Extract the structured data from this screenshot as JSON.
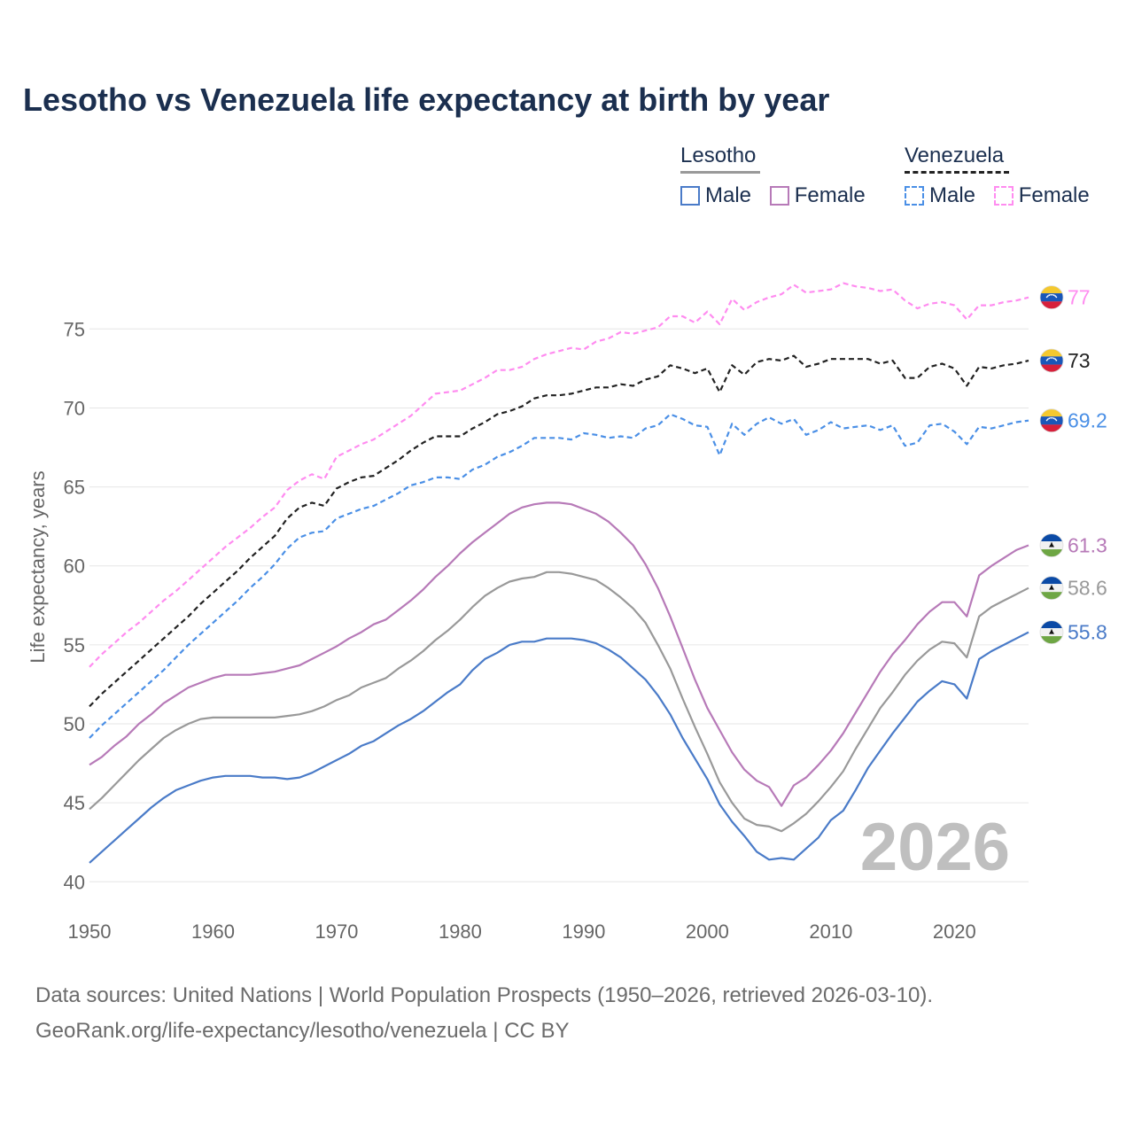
{
  "title": "Lesotho vs Venezuela life expectancy at birth by year",
  "legend": {
    "lesotho": {
      "name": "Lesotho",
      "male": "Male",
      "female": "Female"
    },
    "venezuela": {
      "name": "Venezuela",
      "male": "Male",
      "female": "Female"
    }
  },
  "footer": {
    "line1": "Data sources: United Nations | World Population Prospects (1950–2026, retrieved 2026-03-10).",
    "line2": "GeoRank.org/life-expectancy/lesotho/venezuela | CC BY"
  },
  "colors": {
    "lesotho_male": "#4a7bc8",
    "lesotho_female": "#b77ab8",
    "lesotho_total": "#999999",
    "venezuela_male": "#4a8fe6",
    "venezuela_female": "#ff8cf0",
    "venezuela_total": "#222222",
    "grid": "#e6e6e6",
    "axis_text": "#666666",
    "watermark": "#bfbfbf"
  },
  "chart_data": {
    "type": "line",
    "ylabel": "Life expectancy, years",
    "xlim": [
      1950,
      2026
    ],
    "ylim": [
      38.5,
      79
    ],
    "x_ticks": [
      1950,
      1960,
      1970,
      1980,
      1990,
      2000,
      2010,
      2020
    ],
    "y_ticks": [
      40,
      45,
      50,
      55,
      60,
      65,
      70,
      75
    ],
    "watermark_year": "2026",
    "x": [
      1950,
      1951,
      1952,
      1953,
      1954,
      1955,
      1956,
      1957,
      1958,
      1959,
      1960,
      1961,
      1962,
      1963,
      1964,
      1965,
      1966,
      1967,
      1968,
      1969,
      1970,
      1971,
      1972,
      1973,
      1974,
      1975,
      1976,
      1977,
      1978,
      1979,
      1980,
      1981,
      1982,
      1983,
      1984,
      1985,
      1986,
      1987,
      1988,
      1989,
      1990,
      1991,
      1992,
      1993,
      1994,
      1995,
      1996,
      1997,
      1998,
      1999,
      2000,
      2001,
      2002,
      2003,
      2004,
      2005,
      2006,
      2007,
      2008,
      2009,
      2010,
      2011,
      2012,
      2013,
      2014,
      2015,
      2016,
      2017,
      2018,
      2019,
      2020,
      2021,
      2022,
      2023,
      2024,
      2025,
      2026
    ],
    "series": [
      {
        "key": "venezuela_female",
        "name": "Venezuela Female",
        "dashed": true,
        "end_label": "77",
        "values": [
          53.6,
          54.4,
          55.1,
          55.8,
          56.4,
          57.1,
          57.8,
          58.4,
          59.1,
          59.8,
          60.5,
          61.2,
          61.8,
          62.4,
          63.1,
          63.7,
          64.8,
          65.4,
          65.8,
          65.5,
          66.9,
          67.3,
          67.7,
          68.0,
          68.5,
          69.0,
          69.5,
          70.2,
          70.9,
          71.0,
          71.1,
          71.5,
          71.9,
          72.4,
          72.4,
          72.6,
          73.1,
          73.4,
          73.6,
          73.8,
          73.7,
          74.2,
          74.4,
          74.8,
          74.7,
          74.9,
          75.1,
          75.8,
          75.8,
          75.4,
          76.1,
          75.3,
          76.9,
          76.2,
          76.7,
          77.0,
          77.2,
          77.8,
          77.3,
          77.4,
          77.5,
          77.9,
          77.7,
          77.6,
          77.4,
          77.5,
          76.8,
          76.3,
          76.6,
          76.7,
          76.5,
          75.6,
          76.5,
          76.5,
          76.7,
          76.8,
          77.0
        ]
      },
      {
        "key": "venezuela_total",
        "name": "Venezuela",
        "dashed": true,
        "end_label": "73",
        "values": [
          51.1,
          51.9,
          52.6,
          53.3,
          54.0,
          54.7,
          55.4,
          56.1,
          56.8,
          57.6,
          58.3,
          59.0,
          59.7,
          60.5,
          61.2,
          61.9,
          63.0,
          63.7,
          64.0,
          63.8,
          64.9,
          65.3,
          65.6,
          65.7,
          66.2,
          66.7,
          67.3,
          67.8,
          68.2,
          68.2,
          68.2,
          68.7,
          69.1,
          69.6,
          69.8,
          70.1,
          70.6,
          70.8,
          70.8,
          70.9,
          71.1,
          71.3,
          71.3,
          71.5,
          71.4,
          71.8,
          72.0,
          72.7,
          72.5,
          72.2,
          72.5,
          71.0,
          72.7,
          72.1,
          72.9,
          73.1,
          73.0,
          73.3,
          72.6,
          72.8,
          73.1,
          73.1,
          73.1,
          73.1,
          72.8,
          73.0,
          71.9,
          71.9,
          72.6,
          72.8,
          72.5,
          71.4,
          72.6,
          72.5,
          72.7,
          72.8,
          73.0
        ]
      },
      {
        "key": "venezuela_male",
        "name": "Venezuela Male",
        "dashed": true,
        "end_label": "69.2",
        "values": [
          49.1,
          49.9,
          50.6,
          51.3,
          52.0,
          52.7,
          53.4,
          54.2,
          55.0,
          55.7,
          56.4,
          57.1,
          57.8,
          58.6,
          59.3,
          60.1,
          61.1,
          61.8,
          62.1,
          62.2,
          63.0,
          63.3,
          63.6,
          63.8,
          64.2,
          64.6,
          65.1,
          65.3,
          65.6,
          65.6,
          65.5,
          66.1,
          66.4,
          66.9,
          67.2,
          67.6,
          68.1,
          68.1,
          68.1,
          68.0,
          68.4,
          68.3,
          68.1,
          68.2,
          68.1,
          68.7,
          68.9,
          69.6,
          69.3,
          68.9,
          68.8,
          67.0,
          69.0,
          68.3,
          69.0,
          69.4,
          69.0,
          69.3,
          68.3,
          68.6,
          69.1,
          68.7,
          68.8,
          68.9,
          68.6,
          68.9,
          67.6,
          67.8,
          68.9,
          69.0,
          68.5,
          67.7,
          68.8,
          68.7,
          68.9,
          69.1,
          69.2
        ]
      },
      {
        "key": "lesotho_female",
        "name": "Lesotho Female",
        "dashed": false,
        "end_label": "61.3",
        "values": [
          47.4,
          47.9,
          48.6,
          49.2,
          50.0,
          50.6,
          51.3,
          51.8,
          52.3,
          52.6,
          52.9,
          53.1,
          53.1,
          53.1,
          53.2,
          53.3,
          53.5,
          53.7,
          54.1,
          54.5,
          54.9,
          55.4,
          55.8,
          56.3,
          56.6,
          57.2,
          57.8,
          58.5,
          59.3,
          60.0,
          60.8,
          61.5,
          62.1,
          62.7,
          63.3,
          63.7,
          63.9,
          64.0,
          64.0,
          63.9,
          63.6,
          63.3,
          62.8,
          62.1,
          61.3,
          60.1,
          58.6,
          56.8,
          54.8,
          52.8,
          51.0,
          49.6,
          48.2,
          47.1,
          46.4,
          46.0,
          44.8,
          46.1,
          46.6,
          47.4,
          48.3,
          49.4,
          50.7,
          52.0,
          53.3,
          54.4,
          55.3,
          56.3,
          57.1,
          57.7,
          57.7,
          56.8,
          59.4,
          60.0,
          60.5,
          61.0,
          61.3
        ]
      },
      {
        "key": "lesotho_total",
        "name": "Lesotho",
        "dashed": false,
        "end_label": "58.6",
        "values": [
          44.6,
          45.3,
          46.1,
          46.9,
          47.7,
          48.4,
          49.1,
          49.6,
          50.0,
          50.3,
          50.4,
          50.4,
          50.4,
          50.4,
          50.4,
          50.4,
          50.5,
          50.6,
          50.8,
          51.1,
          51.5,
          51.8,
          52.3,
          52.6,
          52.9,
          53.5,
          54.0,
          54.6,
          55.3,
          55.9,
          56.6,
          57.4,
          58.1,
          58.6,
          59.0,
          59.2,
          59.3,
          59.6,
          59.6,
          59.5,
          59.3,
          59.1,
          58.6,
          58.0,
          57.3,
          56.4,
          55.0,
          53.5,
          51.6,
          49.8,
          48.1,
          46.3,
          45.0,
          44.0,
          43.6,
          43.5,
          43.2,
          43.7,
          44.3,
          45.1,
          46.0,
          47.0,
          48.4,
          49.7,
          51.0,
          52.0,
          53.1,
          54.0,
          54.7,
          55.2,
          55.1,
          54.2,
          56.8,
          57.4,
          57.8,
          58.2,
          58.6
        ]
      },
      {
        "key": "lesotho_male",
        "name": "Lesotho Male",
        "dashed": false,
        "end_label": "55.8",
        "values": [
          41.2,
          41.9,
          42.6,
          43.3,
          44.0,
          44.7,
          45.3,
          45.8,
          46.1,
          46.4,
          46.6,
          46.7,
          46.7,
          46.7,
          46.6,
          46.6,
          46.5,
          46.6,
          46.9,
          47.3,
          47.7,
          48.1,
          48.6,
          48.9,
          49.4,
          49.9,
          50.3,
          50.8,
          51.4,
          52.0,
          52.5,
          53.4,
          54.1,
          54.5,
          55.0,
          55.2,
          55.2,
          55.4,
          55.4,
          55.4,
          55.3,
          55.1,
          54.7,
          54.2,
          53.5,
          52.8,
          51.8,
          50.6,
          49.1,
          47.8,
          46.5,
          44.9,
          43.8,
          42.9,
          41.9,
          41.4,
          41.5,
          41.4,
          42.1,
          42.8,
          43.9,
          44.5,
          45.8,
          47.2,
          48.3,
          49.4,
          50.4,
          51.4,
          52.1,
          52.7,
          52.5,
          51.6,
          54.1,
          54.6,
          55.0,
          55.4,
          55.8
        ]
      }
    ]
  }
}
